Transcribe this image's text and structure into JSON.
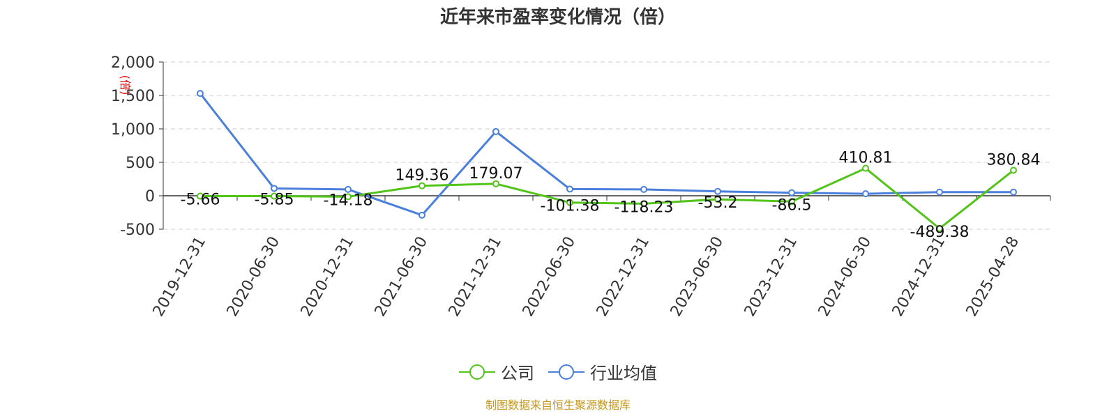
{
  "chart_data": {
    "type": "line",
    "title": "近年来市盈率变化情况（倍）",
    "unit_label": "(倍)",
    "categories": [
      "2019-12-31",
      "2020-06-30",
      "2020-12-31",
      "2021-06-30",
      "2021-12-31",
      "2022-06-30",
      "2022-12-31",
      "2023-06-30",
      "2023-12-31",
      "2024-06-30",
      "2024-12-31",
      "2025-04-28"
    ],
    "ylim": [
      -500,
      2000
    ],
    "yticks": [
      -500,
      0,
      500,
      1000,
      1500,
      2000
    ],
    "ytick_labels": [
      "-500",
      "0",
      "500",
      "1,000",
      "1,500",
      "2,000"
    ],
    "grid": true,
    "legend_position": "bottom",
    "series": [
      {
        "name": "公司",
        "color": "#52c41a",
        "values": [
          -5.66,
          -5.85,
          -14.18,
          149.36,
          179.07,
          -101.38,
          -118.23,
          -53.2,
          -86.5,
          410.81,
          -489.38,
          380.84
        ],
        "labels": [
          "-5.66",
          "-5.85",
          "-14.18",
          "149.36",
          "179.07",
          "-101.38",
          "-118.23",
          "-53.2",
          "-86.5",
          "410.81",
          "-489.38",
          "380.84"
        ]
      },
      {
        "name": "行业均值",
        "color": "#4a7fdc",
        "values": [
          1530,
          110,
          95,
          -290,
          960,
          100,
          95,
          65,
          45,
          30,
          55,
          55
        ]
      }
    ]
  },
  "source": "制图数据来自恒生聚源数据库"
}
